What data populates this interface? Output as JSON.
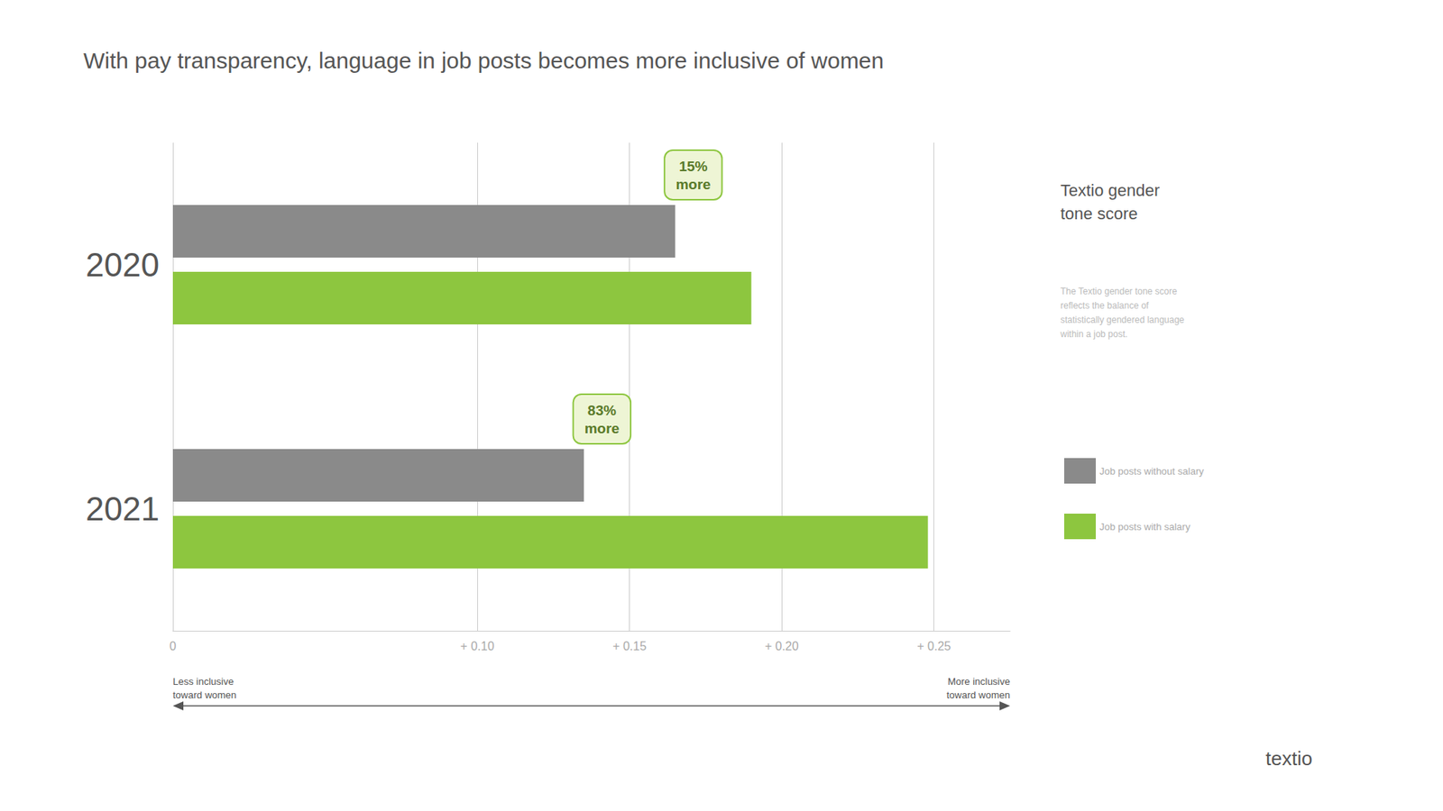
{
  "chart_data": {
    "type": "bar",
    "orientation": "horizontal",
    "title": "With pay transparency, language in job posts becomes more inclusive of women",
    "categories": [
      "2020",
      "2021"
    ],
    "series": [
      {
        "name": "Job posts without salary",
        "color": "#8a8a8a",
        "values": [
          0.165,
          0.135
        ]
      },
      {
        "name": "Job posts with salary",
        "color": "#8dc63f",
        "values": [
          0.19,
          0.248
        ]
      }
    ],
    "xlim": [
      0,
      0.275
    ],
    "xticks": [
      0,
      {
        "value": 0.1,
        "label": "+ 0.10"
      },
      {
        "value": 0.15,
        "label": "+ 0.15"
      },
      {
        "value": 0.2,
        "label": "+ 0.20"
      },
      {
        "value": 0.25,
        "label": "+ 0.25"
      }
    ],
    "grid": true,
    "legend": "right",
    "legend_title": "Textio gender\ntone score",
    "legend_description": "The Textio gender tone score\nreflects the balance of\nstatistically gendered language\nwithin a job post.",
    "annotations": [
      {
        "text": "15%\nmore",
        "category": "2020",
        "series": "Job posts without salary"
      },
      {
        "text": "83%\nmore",
        "category": "2021",
        "series": "Job posts without salary"
      }
    ],
    "arrow_labels": [
      "Less inclusive\ntoward women",
      "More inclusive\ntoward women"
    ],
    "logo_text": "textio"
  }
}
